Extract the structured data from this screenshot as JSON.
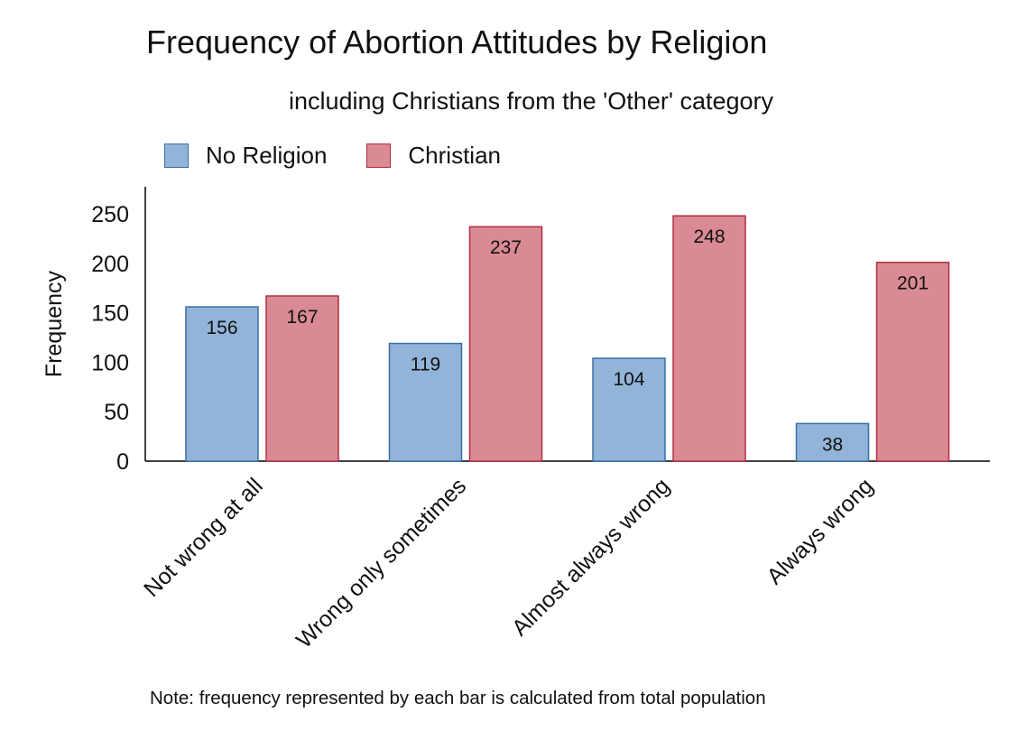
{
  "chart_data": {
    "type": "bar",
    "title": "Frequency of Abortion Attitudes by Religion",
    "subtitle": "including Christians from the 'Other' category",
    "ylabel": "Frequency",
    "xlabel": "",
    "categories": [
      "Not wrong at all",
      "Wrong only sometimes",
      "Almost always wrong",
      "Always wrong"
    ],
    "series": [
      {
        "name": "No Religion",
        "values": [
          156,
          119,
          104,
          38
        ],
        "fill": "#92b4d8",
        "stroke": "#3a6ea8"
      },
      {
        "name": "Christian",
        "values": [
          167,
          237,
          248,
          201
        ],
        "fill": "#d98a94",
        "stroke": "#b52e40"
      }
    ],
    "yticks": [
      0,
      50,
      100,
      150,
      200,
      250
    ],
    "ylim": [
      0,
      280
    ],
    "grid": false,
    "legend_position": "top-left",
    "note": "Note: frequency represented by each bar is calculated from total population"
  }
}
